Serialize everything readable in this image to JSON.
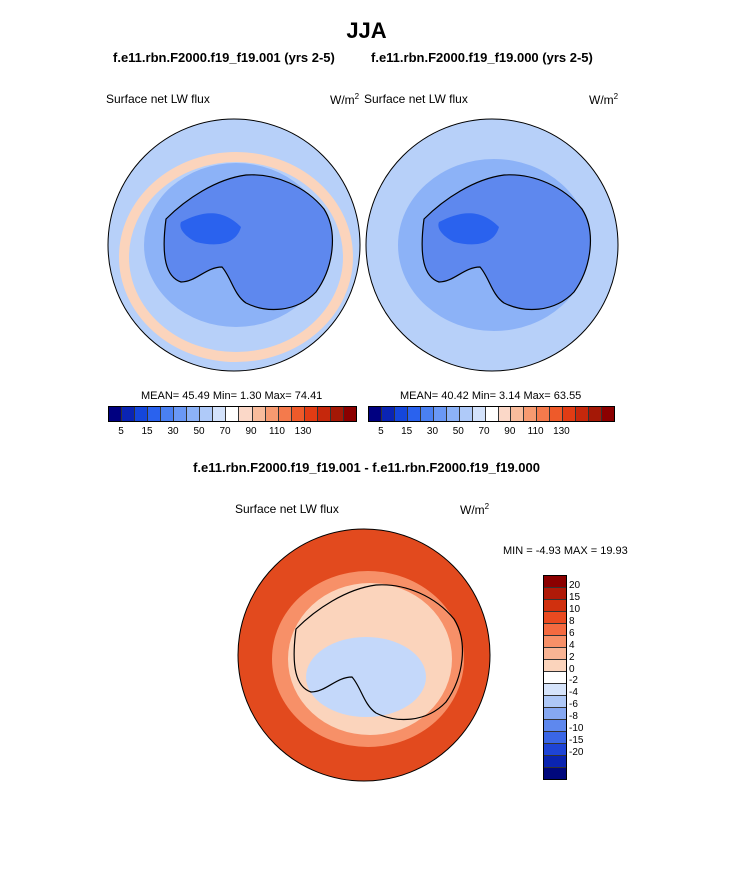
{
  "title": "JJA",
  "panels": [
    {
      "case_title": "f.e11.rbn.F2000.f19_f19.001 (yrs 2-5)",
      "variable": "Surface net LW flux",
      "units": "W/m",
      "units_sup": "2",
      "stats": "MEAN=  45.49  Min=   1.30  Max=  74.41"
    },
    {
      "case_title": "f.e11.rbn.F2000.f19_f19.000 (yrs 2-5)",
      "variable": "Surface net LW flux",
      "units": "W/m",
      "units_sup": "2",
      "stats": "MEAN=  40.42  Min=   3.14  Max=  63.55"
    }
  ],
  "diff_panel": {
    "title": "f.e11.rbn.F2000.f19_f19.001 - f.e11.rbn.F2000.f19_f19.000",
    "variable": "Surface net LW flux",
    "units": "W/m",
    "units_sup": "2",
    "stats": "MIN =  -4.93 MAX =  19.93"
  },
  "colorbar_top": {
    "colors": [
      "#000080",
      "#0a24b4",
      "#1446dc",
      "#2a62ee",
      "#4a80f2",
      "#6a98f5",
      "#8cb2f7",
      "#afcaf9",
      "#d3e2fb",
      "#ffffff",
      "#fbd8c8",
      "#f9bc9c",
      "#f79a70",
      "#f47a4c",
      "#ee5a2a",
      "#e13c14",
      "#c6280c",
      "#a41806",
      "#8b0000"
    ],
    "tick_labels": [
      "5",
      "15",
      "30",
      "50",
      "70",
      "90",
      "110",
      "130"
    ]
  },
  "colorbar_diff": {
    "colors": [
      "#8b0000",
      "#b01a08",
      "#d0300e",
      "#ea4a20",
      "#f46a40",
      "#f79068",
      "#f9b494",
      "#fbd4bc",
      "#ffffff",
      "#d6e4fb",
      "#aec8f7",
      "#86a8f2",
      "#5e88ee",
      "#3a66e6",
      "#1e44d6",
      "#0a24b0",
      "#00087c"
    ],
    "tick_labels": [
      "20",
      "15",
      "10",
      "8",
      "6",
      "4",
      "2",
      "0",
      "-2",
      "-4",
      "-6",
      "-8",
      "-10",
      "-15",
      "-20"
    ]
  },
  "map_colors": {
    "antarctica_top": "#5e88ee",
    "antarctica_deep": "#2a62ee",
    "ocean_light": "#b7d0f9",
    "ocean_mid": "#8cb2f7",
    "ring_warm": "#fbd4bc",
    "diff_edge": "#e24a1e",
    "diff_mid": "#f79068",
    "diff_light": "#fbd4bc",
    "diff_cool": "#c4d8fa",
    "coast": "#000000"
  }
}
